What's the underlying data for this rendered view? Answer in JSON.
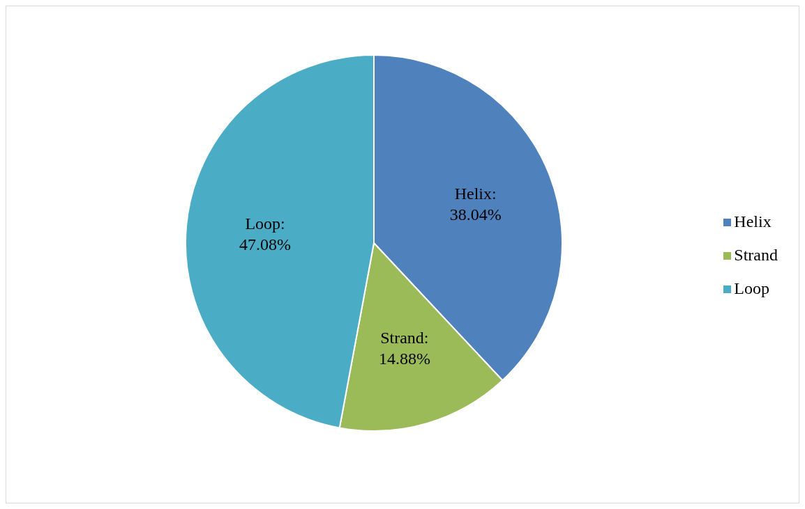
{
  "chart_data": {
    "type": "pie",
    "categories": [
      "Helix",
      "Strand",
      "Loop"
    ],
    "values": [
      38.04,
      14.88,
      47.08
    ],
    "colors": [
      "#4f81bd",
      "#9bbb59",
      "#4bacc6"
    ],
    "value_labels": [
      "Helix: 38.04%",
      "Strand: 14.88%",
      "Loop: 47.08%"
    ],
    "legend": "right"
  }
}
